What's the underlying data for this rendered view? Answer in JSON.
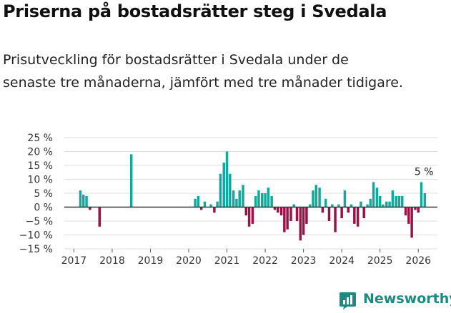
{
  "title": "Priserna på bostadsrätter steg i Svedala",
  "subtitle": "Prisutveckling för bostadsrätter i Svedala under de senaste tre månaderna, jämfört med tre månader tidigare.",
  "brand": {
    "name": "Newsworthy",
    "color": "#1b8a80"
  },
  "colors": {
    "positive": "#13a89e",
    "negative": "#9b1246",
    "grid": "#dddddd",
    "axis": "#333333"
  },
  "chart_data": {
    "type": "bar",
    "title": "Priserna på bostadsrätter steg i Svedala",
    "ylabel": "",
    "xlabel": "",
    "ylim": [
      -15,
      25
    ],
    "yticks": [
      -15,
      -10,
      -5,
      0,
      5,
      10,
      15,
      20,
      25
    ],
    "ytick_labels": [
      "−15 %",
      "−10 %",
      "−5 %",
      "0 %",
      "5 %",
      "10 %",
      "15 %",
      "20 %",
      "25 %"
    ],
    "xlim": [
      2016.75,
      2026.5
    ],
    "xticks": [
      2017,
      2018,
      2019,
      2020,
      2021,
      2022,
      2023,
      2024,
      2025,
      2026
    ],
    "xtick_labels": [
      "2017",
      "2018",
      "2019",
      "2020",
      "2021",
      "2022",
      "2023",
      "2024",
      "2025",
      "2026"
    ],
    "annotation": {
      "text": "5 %",
      "x": 2026.0
    },
    "series": [
      {
        "name": "Prisutveckling",
        "points": [
          {
            "x": 2017.17,
            "y": 6
          },
          {
            "x": 2017.25,
            "y": 4.5
          },
          {
            "x": 2017.33,
            "y": 4
          },
          {
            "x": 2017.42,
            "y": -1
          },
          {
            "x": 2017.67,
            "y": -7
          },
          {
            "x": 2018.5,
            "y": 19
          },
          {
            "x": 2020.17,
            "y": 3
          },
          {
            "x": 2020.25,
            "y": 4
          },
          {
            "x": 2020.33,
            "y": -1
          },
          {
            "x": 2020.42,
            "y": 2
          },
          {
            "x": 2020.58,
            "y": 1
          },
          {
            "x": 2020.67,
            "y": -2
          },
          {
            "x": 2020.75,
            "y": 2
          },
          {
            "x": 2020.83,
            "y": 12
          },
          {
            "x": 2020.92,
            "y": 16
          },
          {
            "x": 2021.0,
            "y": 20
          },
          {
            "x": 2021.08,
            "y": 12
          },
          {
            "x": 2021.17,
            "y": 6
          },
          {
            "x": 2021.25,
            "y": 3
          },
          {
            "x": 2021.33,
            "y": 6
          },
          {
            "x": 2021.42,
            "y": 8
          },
          {
            "x": 2021.5,
            "y": -3
          },
          {
            "x": 2021.58,
            "y": -7
          },
          {
            "x": 2021.67,
            "y": -6
          },
          {
            "x": 2021.75,
            "y": 4
          },
          {
            "x": 2021.83,
            "y": 6
          },
          {
            "x": 2021.92,
            "y": 5
          },
          {
            "x": 2022.0,
            "y": 5
          },
          {
            "x": 2022.08,
            "y": 7
          },
          {
            "x": 2022.17,
            "y": 4
          },
          {
            "x": 2022.25,
            "y": -1
          },
          {
            "x": 2022.33,
            "y": -2
          },
          {
            "x": 2022.42,
            "y": -3
          },
          {
            "x": 2022.5,
            "y": -9
          },
          {
            "x": 2022.58,
            "y": -8
          },
          {
            "x": 2022.67,
            "y": -5
          },
          {
            "x": 2022.75,
            "y": 1
          },
          {
            "x": 2022.83,
            "y": -5
          },
          {
            "x": 2022.92,
            "y": -12
          },
          {
            "x": 2023.0,
            "y": -10
          },
          {
            "x": 2023.08,
            "y": -6
          },
          {
            "x": 2023.17,
            "y": 1
          },
          {
            "x": 2023.25,
            "y": 6
          },
          {
            "x": 2023.33,
            "y": 8
          },
          {
            "x": 2023.42,
            "y": 7
          },
          {
            "x": 2023.5,
            "y": -2
          },
          {
            "x": 2023.58,
            "y": 3
          },
          {
            "x": 2023.67,
            "y": -5
          },
          {
            "x": 2023.75,
            "y": 1
          },
          {
            "x": 2023.83,
            "y": -9
          },
          {
            "x": 2023.92,
            "y": 1
          },
          {
            "x": 2024.0,
            "y": -4
          },
          {
            "x": 2024.08,
            "y": 6
          },
          {
            "x": 2024.17,
            "y": -2
          },
          {
            "x": 2024.25,
            "y": 1
          },
          {
            "x": 2024.33,
            "y": -6
          },
          {
            "x": 2024.42,
            "y": -7
          },
          {
            "x": 2024.5,
            "y": 2
          },
          {
            "x": 2024.58,
            "y": -4
          },
          {
            "x": 2024.67,
            "y": 1
          },
          {
            "x": 2024.75,
            "y": 3
          },
          {
            "x": 2024.83,
            "y": 9
          },
          {
            "x": 2024.92,
            "y": 7
          },
          {
            "x": 2025.0,
            "y": 4
          },
          {
            "x": 2025.08,
            "y": 1
          },
          {
            "x": 2025.17,
            "y": 2
          },
          {
            "x": 2025.25,
            "y": 2
          },
          {
            "x": 2025.33,
            "y": 6
          },
          {
            "x": 2025.42,
            "y": 4
          },
          {
            "x": 2025.5,
            "y": 4
          },
          {
            "x": 2025.58,
            "y": 4
          },
          {
            "x": 2025.67,
            "y": -3
          },
          {
            "x": 2025.75,
            "y": -6
          },
          {
            "x": 2025.83,
            "y": -11
          },
          {
            "x": 2025.92,
            "y": -1
          },
          {
            "x": 2026.0,
            "y": -2
          },
          {
            "x": 2026.08,
            "y": 9
          },
          {
            "x": 2026.17,
            "y": 5
          }
        ]
      }
    ]
  }
}
